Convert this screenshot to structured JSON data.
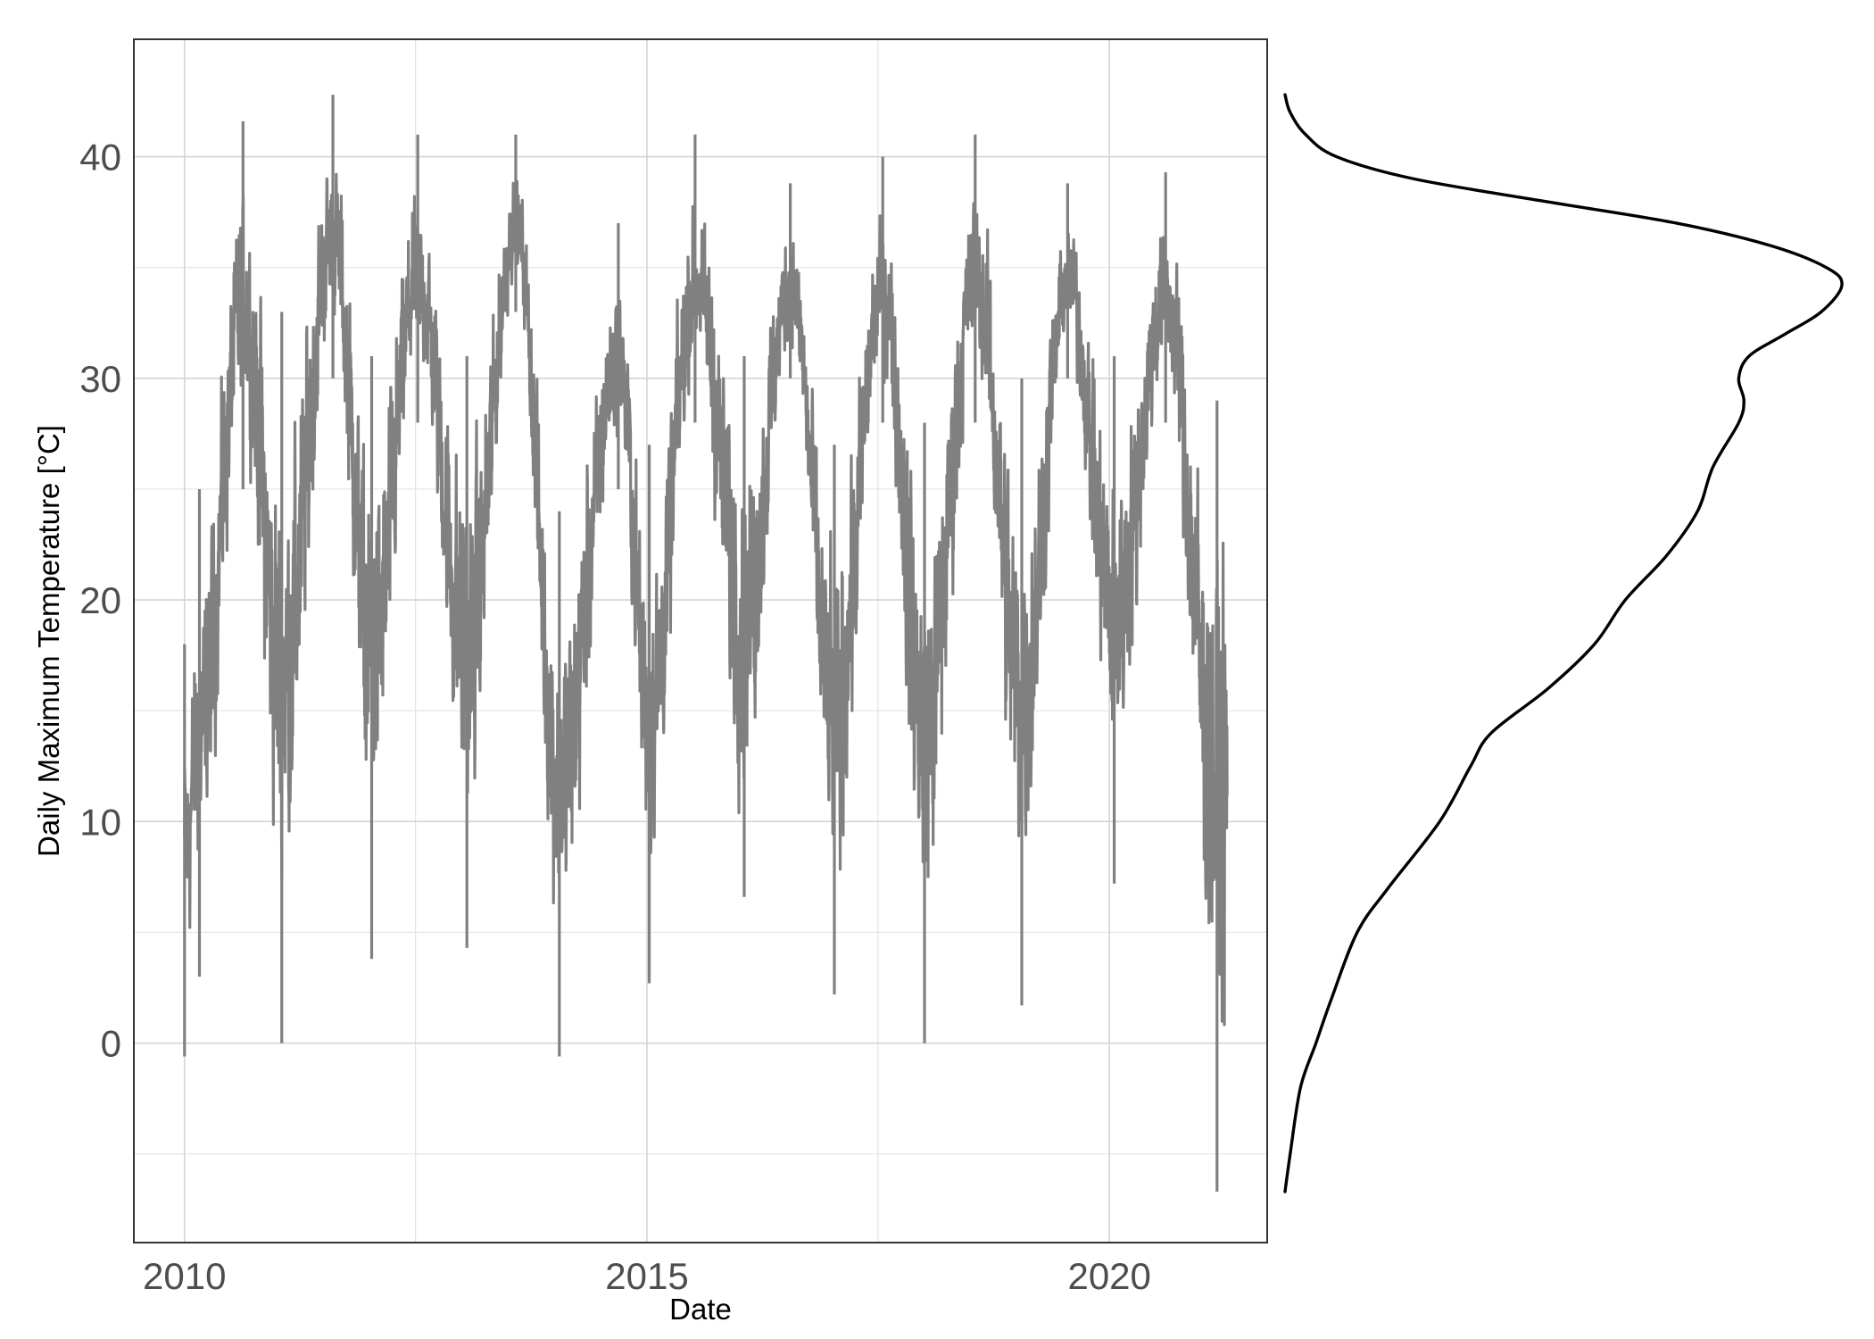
{
  "chart_data": [
    {
      "type": "line",
      "title": "",
      "xlabel": "Date",
      "ylabel": "Daily Maximum Temperature [°C]",
      "x_type": "date",
      "xlim": [
        "2009-06-15",
        "2021-09-15"
      ],
      "ylim": [
        -9,
        45.3
      ],
      "x_ticks": [
        {
          "label": "2010",
          "value": "2010-01-01"
        },
        {
          "label": "2015",
          "value": "2015-01-01"
        },
        {
          "label": "2020",
          "value": "2020-01-01"
        }
      ],
      "x_minor_ticks": [
        "2012-07-01",
        "2017-07-01"
      ],
      "y_ticks": [
        {
          "label": "0",
          "value": 0
        },
        {
          "label": "10",
          "value": 10
        },
        {
          "label": "20",
          "value": 20
        },
        {
          "label": "30",
          "value": 30
        },
        {
          "label": "40",
          "value": 40
        }
      ],
      "y_minor_ticks": [
        -5,
        5,
        15,
        25,
        35
      ],
      "grid": true,
      "legend": "none",
      "series": [
        {
          "color": "#808080",
          "x_start": "2010-01-01",
          "x_end": "2021-04-10",
          "frequency": "daily",
          "value_range": [
            -6.7,
            42.8
          ],
          "seasonal_envelope": [
            {
              "date": "2010-01-01",
              "low": -0.6,
              "high": 18
            },
            {
              "date": "2010-03-01",
              "low": 3,
              "high": 25
            },
            {
              "date": "2010-08-20",
              "low": 25,
              "high": 41.6
            },
            {
              "date": "2011-01-20",
              "low": 0,
              "high": 33
            },
            {
              "date": "2011-08-10",
              "low": 30,
              "high": 42.8
            },
            {
              "date": "2012-01-10",
              "low": 3.8,
              "high": 31
            },
            {
              "date": "2012-07-10",
              "low": 28,
              "high": 41
            },
            {
              "date": "2013-01-20",
              "low": 4.3,
              "high": 31
            },
            {
              "date": "2013-08-01",
              "low": 33,
              "high": 41
            },
            {
              "date": "2014-01-20",
              "low": -0.6,
              "high": 24
            },
            {
              "date": "2014-09-10",
              "low": 25,
              "high": 37
            },
            {
              "date": "2015-01-10",
              "low": 2.7,
              "high": 27
            },
            {
              "date": "2015-07-10",
              "low": 28,
              "high": 41
            },
            {
              "date": "2016-01-20",
              "low": 6.6,
              "high": 31
            },
            {
              "date": "2016-07-20",
              "low": 30,
              "high": 38.8
            },
            {
              "date": "2017-01-10",
              "low": 2.2,
              "high": 27
            },
            {
              "date": "2017-07-20",
              "low": 28,
              "high": 40
            },
            {
              "date": "2018-01-01",
              "low": 0,
              "high": 28
            },
            {
              "date": "2018-07-20",
              "low": 28,
              "high": 41
            },
            {
              "date": "2019-01-20",
              "low": 1.7,
              "high": 30
            },
            {
              "date": "2019-07-20",
              "low": 30,
              "high": 38.8
            },
            {
              "date": "2020-01-20",
              "low": 7.2,
              "high": 31
            },
            {
              "date": "2020-08-10",
              "low": 28,
              "high": 39.3
            },
            {
              "date": "2021-03-01",
              "low": -6.7,
              "high": 29
            }
          ]
        }
      ]
    },
    {
      "type": "line",
      "title": "",
      "xlabel": "",
      "ylabel": "",
      "orientation": "vertical-density",
      "axes_visible": false,
      "shares_y_with": "previous",
      "color": "#000000",
      "value_range": [
        -6.7,
        42.8
      ],
      "density_profile": [
        {
          "y": -6.7,
          "density": 0.0
        },
        {
          "y": -5.0,
          "density": 0.001
        },
        {
          "y": -2.0,
          "density": 0.003
        },
        {
          "y": 0.0,
          "density": 0.006
        },
        {
          "y": 2.0,
          "density": 0.009
        },
        {
          "y": 5.0,
          "density": 0.014
        },
        {
          "y": 7.0,
          "density": 0.02
        },
        {
          "y": 10.0,
          "density": 0.03
        },
        {
          "y": 12.5,
          "density": 0.036
        },
        {
          "y": 14.0,
          "density": 0.04
        },
        {
          "y": 16.0,
          "density": 0.051
        },
        {
          "y": 18.0,
          "density": 0.06
        },
        {
          "y": 20.0,
          "density": 0.066
        },
        {
          "y": 22.0,
          "density": 0.074
        },
        {
          "y": 24.0,
          "density": 0.08
        },
        {
          "y": 26.0,
          "density": 0.083
        },
        {
          "y": 28.0,
          "density": 0.088
        },
        {
          "y": 29.0,
          "density": 0.089
        },
        {
          "y": 30.0,
          "density": 0.088
        },
        {
          "y": 31.0,
          "density": 0.09
        },
        {
          "y": 32.0,
          "density": 0.097
        },
        {
          "y": 33.0,
          "density": 0.104
        },
        {
          "y": 34.2,
          "density": 0.108
        },
        {
          "y": 35.0,
          "density": 0.105
        },
        {
          "y": 36.0,
          "density": 0.094
        },
        {
          "y": 37.0,
          "density": 0.076
        },
        {
          "y": 38.0,
          "density": 0.05
        },
        {
          "y": 39.0,
          "density": 0.025
        },
        {
          "y": 40.0,
          "density": 0.01
        },
        {
          "y": 41.0,
          "density": 0.004
        },
        {
          "y": 42.0,
          "density": 0.001
        },
        {
          "y": 42.8,
          "density": 0.0
        }
      ]
    }
  ]
}
